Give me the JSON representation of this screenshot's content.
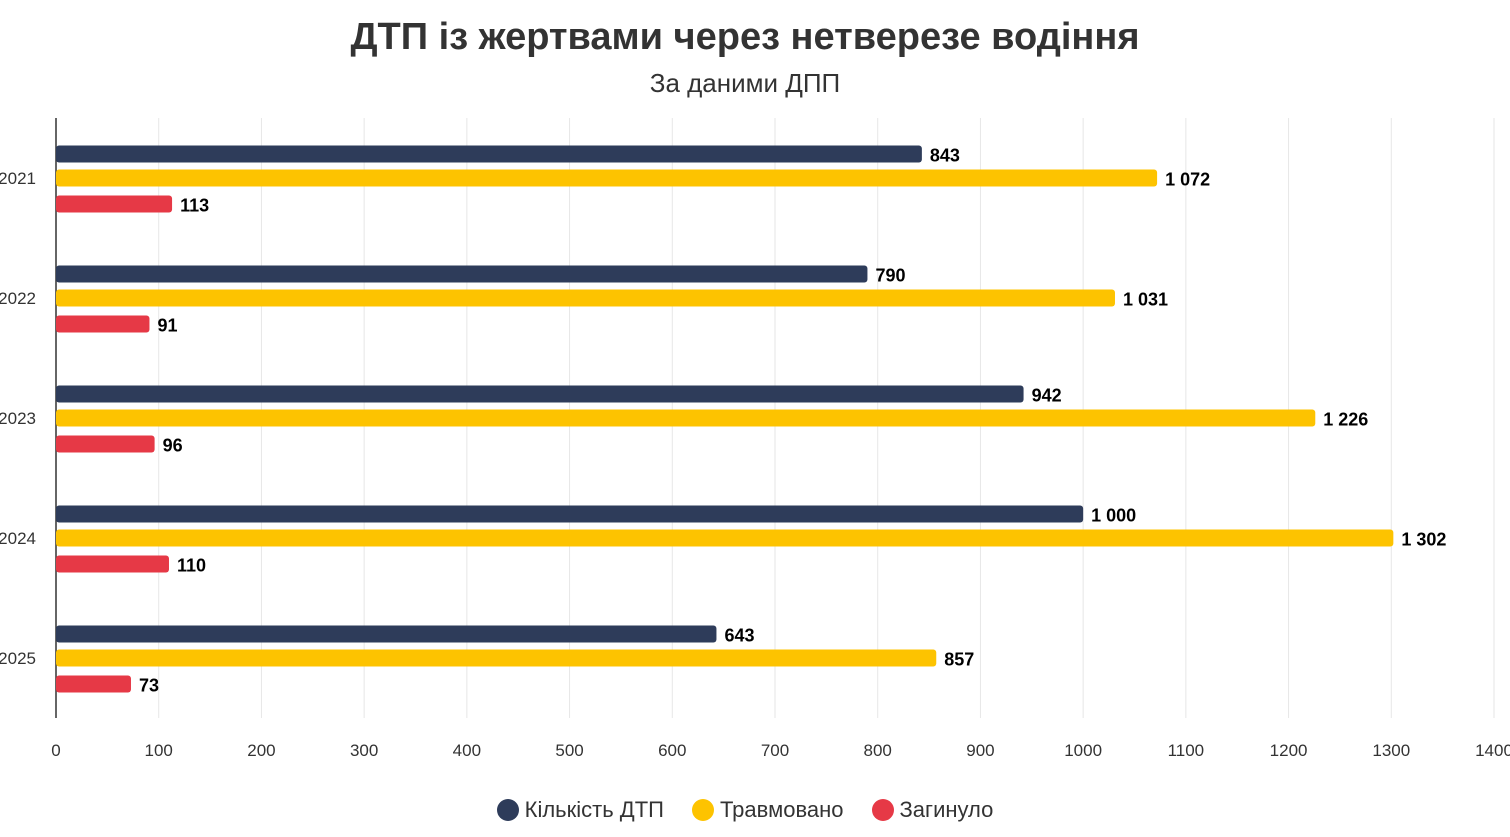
{
  "chart_data": {
    "type": "bar",
    "orientation": "horizontal",
    "title": "ДТП із жертвами через нетверезе водіння",
    "subtitle": "За даними ДПП",
    "categories": [
      "2021",
      "2022",
      "2023",
      "2024",
      "2025"
    ],
    "series": [
      {
        "name": "Кількість ДТП",
        "color": "#2e3c5a",
        "values": [
          843,
          790,
          942,
          1000,
          643
        ],
        "labels": [
          "843",
          "790",
          "942",
          "1 000",
          "643"
        ]
      },
      {
        "name": "Травмовано",
        "color": "#fdc300",
        "values": [
          1072,
          1031,
          1226,
          1302,
          857
        ],
        "labels": [
          "1 072",
          "1 031",
          "1 226",
          "1 302",
          "857"
        ]
      },
      {
        "name": "Загинуло",
        "color": "#e63946",
        "values": [
          113,
          91,
          96,
          110,
          73
        ],
        "labels": [
          "113",
          "91",
          "96",
          "110",
          "73"
        ]
      }
    ],
    "xlim": [
      0,
      1400
    ],
    "xticks": [
      "0",
      "100",
      "200",
      "300",
      "400",
      "500",
      "600",
      "700",
      "800",
      "900",
      "1000",
      "1100",
      "1200",
      "1300",
      "1400"
    ],
    "grid": true,
    "legend_position": "bottom-center"
  }
}
